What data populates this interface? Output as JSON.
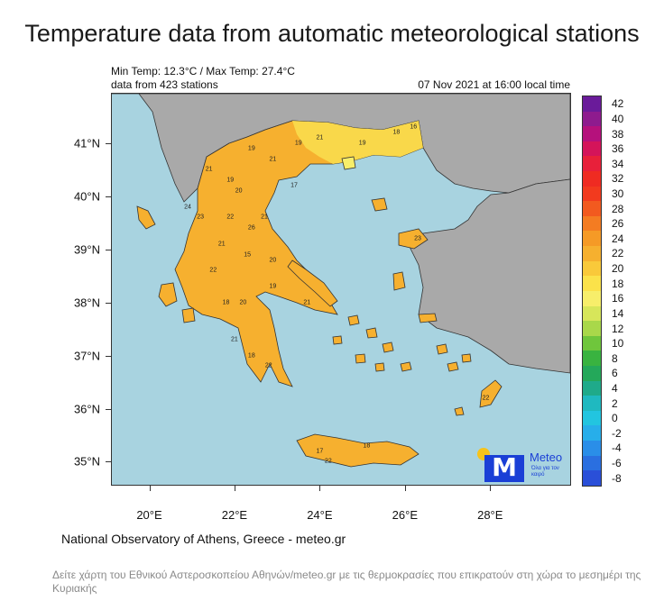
{
  "header": {
    "title": "Temperature data from automatic meteorological stations",
    "min_max": "Min Temp: 12.3°C / Max Temp: 27.4°C",
    "stations": "data from 423 stations",
    "datetime": "07 Nov 2021 at 16:00 local time"
  },
  "map": {
    "lat_labels": [
      {
        "lat": 41,
        "label": "41°N"
      },
      {
        "lat": 40,
        "label": "40°N"
      },
      {
        "lat": 39,
        "label": "39°N"
      },
      {
        "lat": 38,
        "label": "38°N"
      },
      {
        "lat": 37,
        "label": "37°N"
      },
      {
        "lat": 36,
        "label": "36°N"
      },
      {
        "lat": 35,
        "label": "35°N"
      }
    ],
    "lon_labels": [
      {
        "lon": 20,
        "label": "20°E"
      },
      {
        "lon": 22,
        "label": "22°E"
      },
      {
        "lon": 24,
        "label": "24°E"
      },
      {
        "lon": 26,
        "label": "26°E"
      },
      {
        "lon": 28,
        "label": "28°E"
      }
    ],
    "extent": {
      "lon_min": 19.1,
      "lon_max": 29.9,
      "lat_min": 34.55,
      "lat_max": 41.95
    },
    "colors": {
      "sea": "#a8d3e0",
      "land_other": "#a9a9a9",
      "greece_warm": "#f6b02f",
      "greece_mild": "#f9d84a",
      "greece_cool": "#f7ee6a"
    },
    "stations": [
      {
        "lon": 22.9,
        "lat": 40.7,
        "value": "21"
      },
      {
        "lon": 22.4,
        "lat": 40.9,
        "value": "19"
      },
      {
        "lon": 23.5,
        "lat": 41.0,
        "value": "19"
      },
      {
        "lon": 24.0,
        "lat": 41.1,
        "value": "21"
      },
      {
        "lon": 25.0,
        "lat": 41.0,
        "value": "19"
      },
      {
        "lon": 21.4,
        "lat": 40.5,
        "value": "21"
      },
      {
        "lon": 21.9,
        "lat": 40.3,
        "value": "19"
      },
      {
        "lon": 22.1,
        "lat": 40.1,
        "value": "20"
      },
      {
        "lon": 23.4,
        "lat": 40.2,
        "value": "17"
      },
      {
        "lon": 20.9,
        "lat": 39.8,
        "value": "24"
      },
      {
        "lon": 21.2,
        "lat": 39.6,
        "value": "23"
      },
      {
        "lon": 21.9,
        "lat": 39.6,
        "value": "22"
      },
      {
        "lon": 22.7,
        "lat": 39.6,
        "value": "21"
      },
      {
        "lon": 22.4,
        "lat": 39.4,
        "value": "26"
      },
      {
        "lon": 21.7,
        "lat": 39.1,
        "value": "21"
      },
      {
        "lon": 22.3,
        "lat": 38.9,
        "value": "15"
      },
      {
        "lon": 22.9,
        "lat": 38.8,
        "value": "20"
      },
      {
        "lon": 21.5,
        "lat": 38.6,
        "value": "22"
      },
      {
        "lon": 22.9,
        "lat": 38.3,
        "value": "19"
      },
      {
        "lon": 23.7,
        "lat": 38.0,
        "value": "21"
      },
      {
        "lon": 21.8,
        "lat": 38.0,
        "value": "18"
      },
      {
        "lon": 22.2,
        "lat": 38.0,
        "value": "20"
      },
      {
        "lon": 22.0,
        "lat": 37.3,
        "value": "21"
      },
      {
        "lon": 22.4,
        "lat": 37.0,
        "value": "18"
      },
      {
        "lon": 22.8,
        "lat": 36.8,
        "value": "22"
      },
      {
        "lon": 24.0,
        "lat": 35.2,
        "value": "17"
      },
      {
        "lon": 25.1,
        "lat": 35.3,
        "value": "18"
      },
      {
        "lon": 24.2,
        "lat": 35.0,
        "value": "22"
      },
      {
        "lon": 26.2,
        "lat": 41.3,
        "value": "16"
      },
      {
        "lon": 25.8,
        "lat": 41.2,
        "value": "18"
      },
      {
        "lon": 26.3,
        "lat": 39.2,
        "value": "23"
      },
      {
        "lon": 27.9,
        "lat": 36.2,
        "value": "22"
      }
    ]
  },
  "colorbar": {
    "labels": [
      "42",
      "40",
      "38",
      "36",
      "34",
      "32",
      "30",
      "28",
      "26",
      "24",
      "22",
      "20",
      "18",
      "16",
      "14",
      "12",
      "10",
      "8",
      "6",
      "4",
      "2",
      "0",
      "-2",
      "-4",
      "-6",
      "-8"
    ],
    "colors": [
      "#6a1b9a",
      "#8e1b8e",
      "#b5117c",
      "#d4145a",
      "#e8203a",
      "#ef2b22",
      "#f23a1e",
      "#f25a1f",
      "#f47c22",
      "#f59a26",
      "#f6b02f",
      "#f9c93a",
      "#fbe24a",
      "#f7ee6a",
      "#d7e65a",
      "#a9d84a",
      "#6fc63c",
      "#39b340",
      "#24a85a",
      "#1faa8a",
      "#1fb9c0",
      "#22c5e0",
      "#27aeea",
      "#2a8ee8",
      "#2a6fe0",
      "#2a4fd8"
    ]
  },
  "logo": {
    "name": "Meteo",
    "tagline": "Όλα για τον καιρό"
  },
  "footer": {
    "credit": "National Observatory of Athens, Greece - meteo.gr",
    "caption": "Δείτε χάρτη του Εθνικού Αστεροσκοπείου Αθηνών/meteo.gr με τις θερμοκρασίες που επικρατούν στη χώρα το μεσημέρι της Κυριακής"
  }
}
